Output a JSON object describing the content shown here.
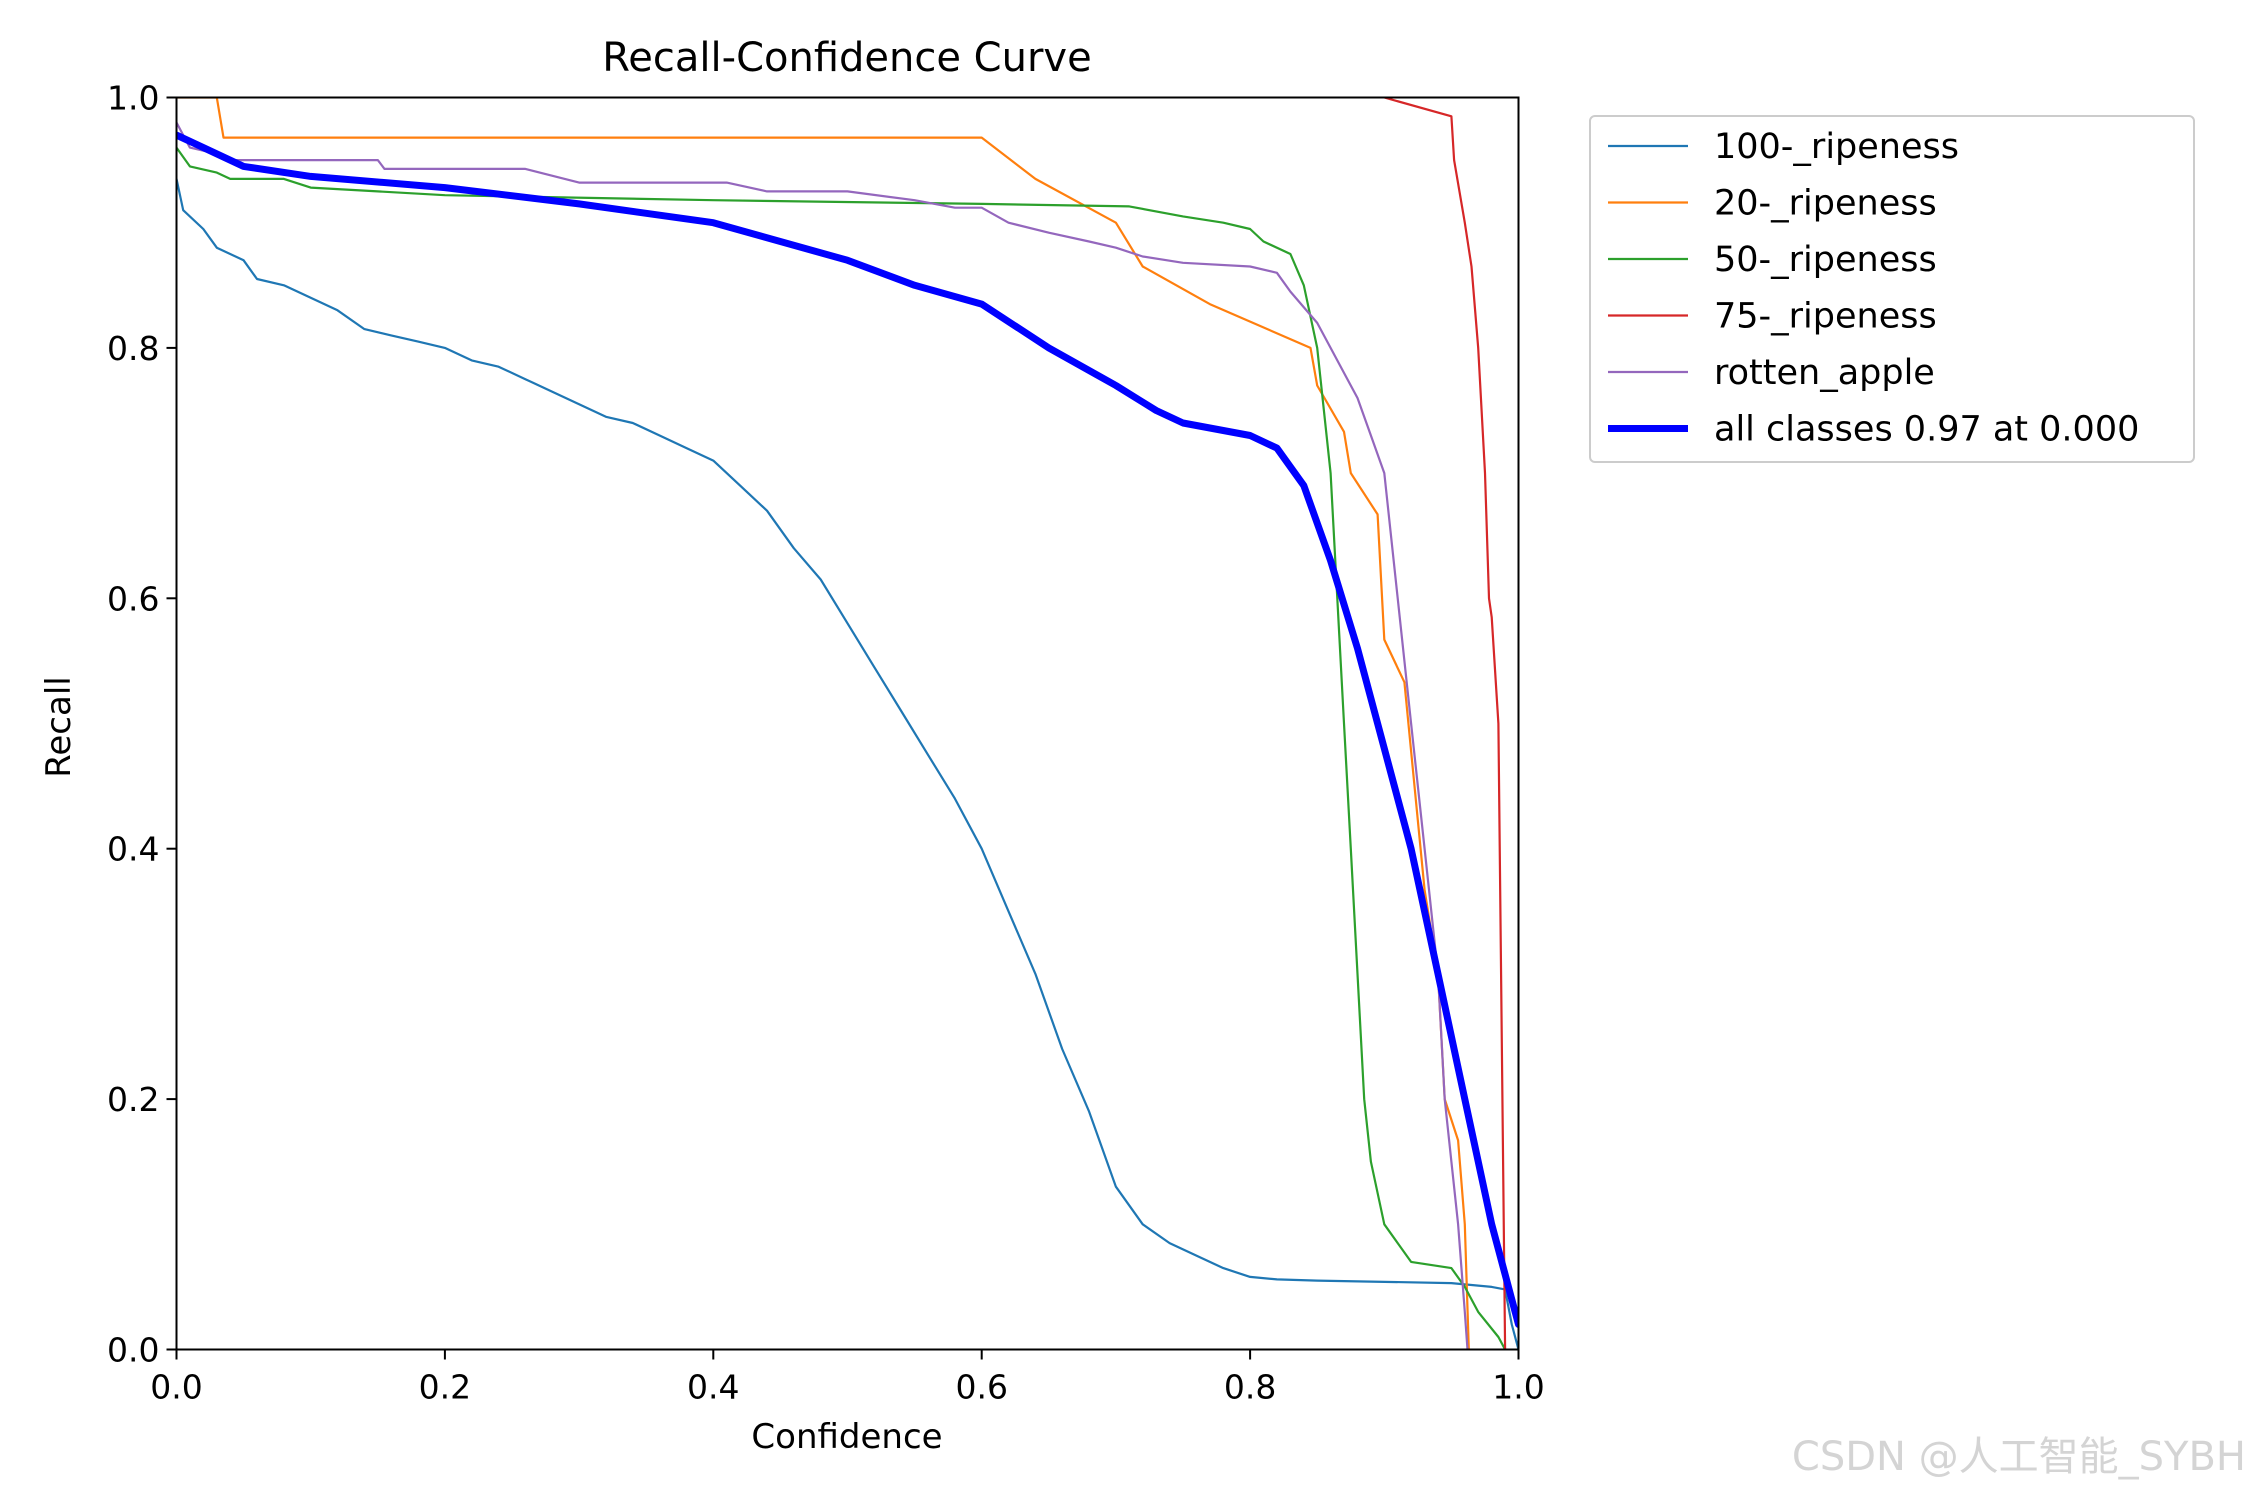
{
  "watermark": "CSDN @人工智能_SYBH",
  "chart_data": {
    "type": "line",
    "title": "Recall-Confidence Curve",
    "xlabel": "Confidence",
    "ylabel": "Recall",
    "xlim": [
      0,
      1
    ],
    "ylim": [
      0,
      1
    ],
    "xticks": [
      "0.0",
      "0.2",
      "0.4",
      "0.6",
      "0.8",
      "1.0"
    ],
    "yticks": [
      "0.0",
      "0.2",
      "0.4",
      "0.6",
      "0.8",
      "1.0"
    ],
    "grid": false,
    "legend_position": "outside top-right",
    "series": [
      {
        "name": "100-_ripeness",
        "color": "#1f77b4",
        "width": "thin",
        "points": [
          [
            0,
            0.935
          ],
          [
            0.005,
            0.91
          ],
          [
            0.02,
            0.895
          ],
          [
            0.03,
            0.88
          ],
          [
            0.05,
            0.87
          ],
          [
            0.06,
            0.855
          ],
          [
            0.08,
            0.85
          ],
          [
            0.1,
            0.84
          ],
          [
            0.12,
            0.83
          ],
          [
            0.14,
            0.815
          ],
          [
            0.16,
            0.81
          ],
          [
            0.18,
            0.805
          ],
          [
            0.2,
            0.8
          ],
          [
            0.22,
            0.79
          ],
          [
            0.24,
            0.785
          ],
          [
            0.26,
            0.775
          ],
          [
            0.28,
            0.765
          ],
          [
            0.3,
            0.755
          ],
          [
            0.32,
            0.745
          ],
          [
            0.34,
            0.74
          ],
          [
            0.36,
            0.73
          ],
          [
            0.38,
            0.72
          ],
          [
            0.4,
            0.71
          ],
          [
            0.42,
            0.69
          ],
          [
            0.44,
            0.67
          ],
          [
            0.46,
            0.64
          ],
          [
            0.48,
            0.615
          ],
          [
            0.5,
            0.58
          ],
          [
            0.52,
            0.545
          ],
          [
            0.54,
            0.51
          ],
          [
            0.56,
            0.475
          ],
          [
            0.58,
            0.44
          ],
          [
            0.6,
            0.4
          ],
          [
            0.62,
            0.35
          ],
          [
            0.64,
            0.3
          ],
          [
            0.66,
            0.24
          ],
          [
            0.68,
            0.19
          ],
          [
            0.7,
            0.13
          ],
          [
            0.72,
            0.1
          ],
          [
            0.74,
            0.085
          ],
          [
            0.76,
            0.075
          ],
          [
            0.78,
            0.065
          ],
          [
            0.8,
            0.058
          ],
          [
            0.82,
            0.056
          ],
          [
            0.85,
            0.055
          ],
          [
            0.95,
            0.053
          ],
          [
            0.98,
            0.05
          ],
          [
            0.99,
            0.048
          ],
          [
            0.995,
            0.02
          ],
          [
            1,
            0.0
          ]
        ]
      },
      {
        "name": "20-_ripeness",
        "color": "#ff7f0e",
        "width": "thin",
        "points": [
          [
            0,
            1.0
          ],
          [
            0.03,
            1.0
          ],
          [
            0.035,
            0.968
          ],
          [
            0.6,
            0.968
          ],
          [
            0.64,
            0.935
          ],
          [
            0.7,
            0.9
          ],
          [
            0.72,
            0.865
          ],
          [
            0.77,
            0.835
          ],
          [
            0.845,
            0.8
          ],
          [
            0.85,
            0.77
          ],
          [
            0.87,
            0.733
          ],
          [
            0.875,
            0.7
          ],
          [
            0.895,
            0.667
          ],
          [
            0.9,
            0.567
          ],
          [
            0.915,
            0.533
          ],
          [
            0.93,
            0.367
          ],
          [
            0.94,
            0.3
          ],
          [
            0.945,
            0.2
          ],
          [
            0.955,
            0.167
          ],
          [
            0.96,
            0.1
          ],
          [
            0.963,
            0.0
          ]
        ]
      },
      {
        "name": "50-_ripeness",
        "color": "#2ca02c",
        "width": "thin",
        "points": [
          [
            0,
            0.96
          ],
          [
            0.01,
            0.945
          ],
          [
            0.03,
            0.94
          ],
          [
            0.04,
            0.935
          ],
          [
            0.08,
            0.935
          ],
          [
            0.1,
            0.928
          ],
          [
            0.15,
            0.925
          ],
          [
            0.2,
            0.922
          ],
          [
            0.4,
            0.918
          ],
          [
            0.6,
            0.915
          ],
          [
            0.71,
            0.913
          ],
          [
            0.75,
            0.905
          ],
          [
            0.78,
            0.9
          ],
          [
            0.8,
            0.895
          ],
          [
            0.81,
            0.885
          ],
          [
            0.83,
            0.875
          ],
          [
            0.84,
            0.85
          ],
          [
            0.85,
            0.8
          ],
          [
            0.855,
            0.75
          ],
          [
            0.86,
            0.7
          ],
          [
            0.865,
            0.6
          ],
          [
            0.87,
            0.5
          ],
          [
            0.875,
            0.4
          ],
          [
            0.88,
            0.3
          ],
          [
            0.885,
            0.2
          ],
          [
            0.89,
            0.15
          ],
          [
            0.9,
            0.1
          ],
          [
            0.91,
            0.085
          ],
          [
            0.92,
            0.07
          ],
          [
            0.95,
            0.065
          ],
          [
            0.96,
            0.05
          ],
          [
            0.97,
            0.03
          ],
          [
            0.985,
            0.01
          ],
          [
            0.99,
            0.0
          ]
        ]
      },
      {
        "name": "75-_ripeness",
        "color": "#d62728",
        "width": "thin",
        "points": [
          [
            0.9,
            1.0
          ],
          [
            0.95,
            0.985
          ],
          [
            0.952,
            0.95
          ],
          [
            0.96,
            0.9
          ],
          [
            0.965,
            0.865
          ],
          [
            0.97,
            0.8
          ],
          [
            0.975,
            0.7
          ],
          [
            0.978,
            0.6
          ],
          [
            0.98,
            0.585
          ],
          [
            0.985,
            0.5
          ],
          [
            0.99,
            0.0
          ]
        ]
      },
      {
        "name": "rotten_apple",
        "color": "#9467bd",
        "width": "thin",
        "points": [
          [
            0,
            0.98
          ],
          [
            0.005,
            0.97
          ],
          [
            0.01,
            0.96
          ],
          [
            0.03,
            0.955
          ],
          [
            0.04,
            0.95
          ],
          [
            0.15,
            0.95
          ],
          [
            0.155,
            0.943
          ],
          [
            0.26,
            0.943
          ],
          [
            0.3,
            0.932
          ],
          [
            0.41,
            0.932
          ],
          [
            0.44,
            0.925
          ],
          [
            0.5,
            0.925
          ],
          [
            0.55,
            0.918
          ],
          [
            0.58,
            0.912
          ],
          [
            0.6,
            0.912
          ],
          [
            0.62,
            0.9
          ],
          [
            0.65,
            0.892
          ],
          [
            0.68,
            0.885
          ],
          [
            0.7,
            0.88
          ],
          [
            0.72,
            0.873
          ],
          [
            0.75,
            0.868
          ],
          [
            0.8,
            0.865
          ],
          [
            0.82,
            0.86
          ],
          [
            0.83,
            0.845
          ],
          [
            0.85,
            0.82
          ],
          [
            0.86,
            0.8
          ],
          [
            0.87,
            0.78
          ],
          [
            0.88,
            0.76
          ],
          [
            0.89,
            0.73
          ],
          [
            0.9,
            0.7
          ],
          [
            0.905,
            0.65
          ],
          [
            0.91,
            0.6
          ],
          [
            0.915,
            0.55
          ],
          [
            0.92,
            0.5
          ],
          [
            0.93,
            0.4
          ],
          [
            0.94,
            0.3
          ],
          [
            0.945,
            0.2
          ],
          [
            0.95,
            0.15
          ],
          [
            0.955,
            0.1
          ],
          [
            0.96,
            0.03
          ],
          [
            0.962,
            0.0
          ]
        ]
      },
      {
        "name": "all classes 0.97 at 0.000",
        "color": "#0000ff",
        "width": "thick",
        "points": [
          [
            0,
            0.97
          ],
          [
            0.02,
            0.96
          ],
          [
            0.05,
            0.945
          ],
          [
            0.1,
            0.937
          ],
          [
            0.2,
            0.928
          ],
          [
            0.3,
            0.915
          ],
          [
            0.4,
            0.9
          ],
          [
            0.5,
            0.87
          ],
          [
            0.55,
            0.85
          ],
          [
            0.6,
            0.835
          ],
          [
            0.65,
            0.8
          ],
          [
            0.7,
            0.77
          ],
          [
            0.73,
            0.75
          ],
          [
            0.75,
            0.74
          ],
          [
            0.8,
            0.73
          ],
          [
            0.82,
            0.72
          ],
          [
            0.84,
            0.69
          ],
          [
            0.86,
            0.63
          ],
          [
            0.88,
            0.56
          ],
          [
            0.9,
            0.48
          ],
          [
            0.92,
            0.4
          ],
          [
            0.94,
            0.3
          ],
          [
            0.96,
            0.2
          ],
          [
            0.98,
            0.1
          ],
          [
            1.0,
            0.02
          ]
        ]
      }
    ]
  }
}
